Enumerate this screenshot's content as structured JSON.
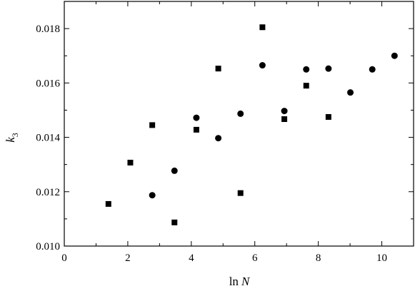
{
  "chart_data": {
    "type": "scatter",
    "title": "",
    "xlabel_main": "ln",
    "xlabel_var": "N",
    "ylabel_main": "k",
    "ylabel_sub": "3",
    "xlim": [
      0,
      11
    ],
    "ylim": [
      0.01,
      0.019
    ],
    "x_ticks": [
      0,
      2,
      4,
      6,
      8,
      10
    ],
    "y_ticks": [
      0.01,
      0.012,
      0.014,
      0.016,
      0.018
    ],
    "x_tick_labels": [
      "0",
      "2",
      "4",
      "6",
      "8",
      "10"
    ],
    "y_tick_labels": [
      "0.010",
      "0.012",
      "0.014",
      "0.016",
      "0.018"
    ],
    "grid": false,
    "series": [
      {
        "marker": "square",
        "color": "#000000",
        "points": [
          {
            "x": 1.39,
            "y": 0.01155
          },
          {
            "x": 2.08,
            "y": 0.01307
          },
          {
            "x": 2.77,
            "y": 0.01445
          },
          {
            "x": 3.47,
            "y": 0.01087
          },
          {
            "x": 4.16,
            "y": 0.01428
          },
          {
            "x": 4.85,
            "y": 0.01653
          },
          {
            "x": 5.55,
            "y": 0.01195
          },
          {
            "x": 6.24,
            "y": 0.01805
          },
          {
            "x": 6.93,
            "y": 0.01467
          },
          {
            "x": 7.62,
            "y": 0.0159
          },
          {
            "x": 8.32,
            "y": 0.01475
          }
        ]
      },
      {
        "marker": "circle",
        "color": "#000000",
        "points": [
          {
            "x": 2.77,
            "y": 0.01187
          },
          {
            "x": 3.47,
            "y": 0.01277
          },
          {
            "x": 4.16,
            "y": 0.01472
          },
          {
            "x": 4.85,
            "y": 0.01397
          },
          {
            "x": 5.55,
            "y": 0.01487
          },
          {
            "x": 6.24,
            "y": 0.01665
          },
          {
            "x": 6.93,
            "y": 0.01497
          },
          {
            "x": 7.62,
            "y": 0.0165
          },
          {
            "x": 8.32,
            "y": 0.01653
          },
          {
            "x": 9.01,
            "y": 0.01565
          },
          {
            "x": 9.7,
            "y": 0.0165
          },
          {
            "x": 10.4,
            "y": 0.017
          }
        ]
      }
    ]
  }
}
